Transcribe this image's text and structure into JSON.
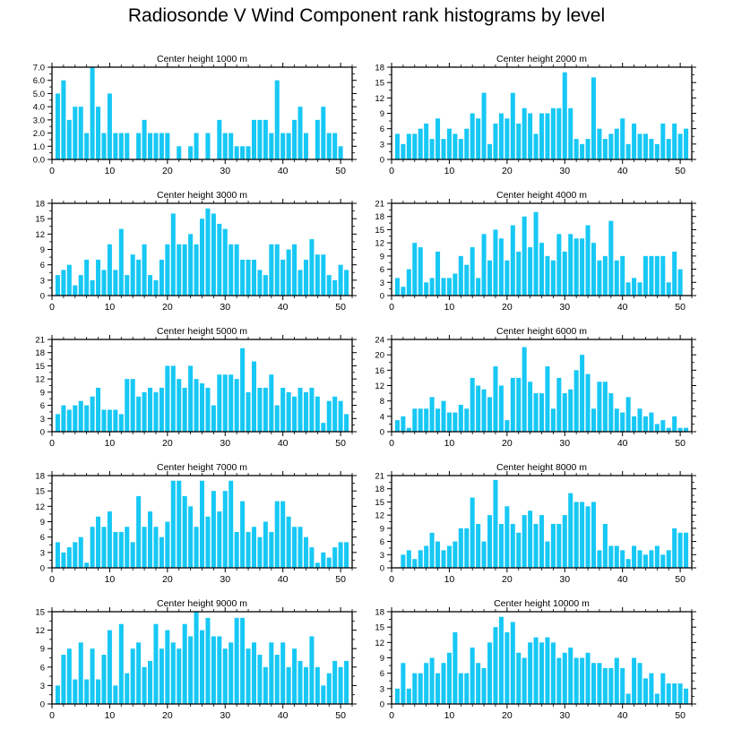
{
  "title": "Radiosonde V Wind Component rank histograms by level",
  "colors": {
    "bar": "#17c8f5",
    "axis": "#000000",
    "background": "#ffffff"
  },
  "chart_data": [
    {
      "type": "bar",
      "title": "Center height 1000 m",
      "ylim": [
        0,
        7
      ],
      "yticks": [
        0.0,
        1.0,
        2.0,
        3.0,
        4.0,
        5.0,
        6.0,
        7.0
      ],
      "ytick_decimals": 1,
      "xlim": [
        0,
        52
      ],
      "xticks": [
        0,
        10,
        20,
        30,
        40,
        50
      ],
      "x": [
        1,
        2,
        3,
        4,
        5,
        6,
        7,
        8,
        9,
        10,
        11,
        12,
        13,
        14,
        15,
        16,
        17,
        18,
        19,
        20,
        21,
        22,
        23,
        24,
        25,
        26,
        27,
        28,
        29,
        30,
        31,
        32,
        33,
        34,
        35,
        36,
        37,
        38,
        39,
        40,
        41,
        42,
        43,
        44,
        45,
        46,
        47,
        48,
        49,
        50,
        51
      ],
      "values": [
        5,
        6,
        3,
        4,
        4,
        2,
        7,
        4,
        2,
        5,
        2,
        2,
        2,
        0,
        2,
        3,
        2,
        2,
        2,
        2,
        0,
        1,
        0,
        1,
        2,
        0,
        2,
        0,
        3,
        2,
        2,
        1,
        1,
        1,
        3,
        3,
        3,
        2,
        6,
        2,
        2,
        3,
        4,
        2,
        0,
        3,
        4,
        2,
        2,
        1,
        0
      ]
    },
    {
      "type": "bar",
      "title": "Center height 2000 m",
      "ylim": [
        0,
        18
      ],
      "yticks": [
        0,
        3,
        6,
        9,
        12,
        15,
        18
      ],
      "ytick_decimals": 0,
      "xlim": [
        0,
        52
      ],
      "xticks": [
        0,
        10,
        20,
        30,
        40,
        50
      ],
      "x": [
        1,
        2,
        3,
        4,
        5,
        6,
        7,
        8,
        9,
        10,
        11,
        12,
        13,
        14,
        15,
        16,
        17,
        18,
        19,
        20,
        21,
        22,
        23,
        24,
        25,
        26,
        27,
        28,
        29,
        30,
        31,
        32,
        33,
        34,
        35,
        36,
        37,
        38,
        39,
        40,
        41,
        42,
        43,
        44,
        45,
        46,
        47,
        48,
        49,
        50,
        51
      ],
      "values": [
        5,
        3,
        5,
        5,
        6,
        7,
        4,
        8,
        4,
        6,
        5,
        4,
        6,
        9,
        8,
        13,
        3,
        7,
        9,
        8,
        13,
        7,
        10,
        9,
        5,
        9,
        9,
        10,
        10,
        17,
        10,
        4,
        3,
        4,
        16,
        6,
        4,
        5,
        6,
        8,
        3,
        7,
        5,
        5,
        4,
        3,
        7,
        4,
        7,
        5,
        6
      ]
    },
    {
      "type": "bar",
      "title": "Center height 3000 m",
      "ylim": [
        0,
        18
      ],
      "yticks": [
        0,
        3,
        6,
        9,
        12,
        15,
        18
      ],
      "ytick_decimals": 0,
      "xlim": [
        0,
        52
      ],
      "xticks": [
        0,
        10,
        20,
        30,
        40,
        50
      ],
      "x": [
        1,
        2,
        3,
        4,
        5,
        6,
        7,
        8,
        9,
        10,
        11,
        12,
        13,
        14,
        15,
        16,
        17,
        18,
        19,
        20,
        21,
        22,
        23,
        24,
        25,
        26,
        27,
        28,
        29,
        30,
        31,
        32,
        33,
        34,
        35,
        36,
        37,
        38,
        39,
        40,
        41,
        42,
        43,
        44,
        45,
        46,
        47,
        48,
        49,
        50,
        51
      ],
      "values": [
        4,
        5,
        6,
        2,
        4,
        7,
        3,
        7,
        5,
        10,
        5,
        13,
        4,
        8,
        7,
        10,
        4,
        3,
        7,
        10,
        16,
        10,
        10,
        12,
        10,
        15,
        17,
        16,
        14,
        13,
        10,
        10,
        7,
        7,
        7,
        5,
        4,
        10,
        10,
        7,
        9,
        10,
        5,
        7,
        11,
        8,
        8,
        4,
        3,
        6,
        5
      ]
    },
    {
      "type": "bar",
      "title": "Center height 4000 m",
      "ylim": [
        0,
        21
      ],
      "yticks": [
        0,
        3,
        6,
        9,
        12,
        15,
        18,
        21
      ],
      "ytick_decimals": 0,
      "xlim": [
        0,
        52
      ],
      "xticks": [
        0,
        10,
        20,
        30,
        40,
        50
      ],
      "x": [
        1,
        2,
        3,
        4,
        5,
        6,
        7,
        8,
        9,
        10,
        11,
        12,
        13,
        14,
        15,
        16,
        17,
        18,
        19,
        20,
        21,
        22,
        23,
        24,
        25,
        26,
        27,
        28,
        29,
        30,
        31,
        32,
        33,
        34,
        35,
        36,
        37,
        38,
        39,
        40,
        41,
        42,
        43,
        44,
        45,
        46,
        47,
        48,
        49,
        50,
        51
      ],
      "values": [
        4,
        2,
        6,
        12,
        11,
        3,
        4,
        10,
        4,
        4,
        5,
        9,
        7,
        11,
        4,
        14,
        8,
        15,
        13,
        8,
        16,
        10,
        18,
        11,
        19,
        12,
        9,
        8,
        14,
        10,
        14,
        13,
        13,
        16,
        12,
        8,
        9,
        17,
        8,
        9,
        3,
        4,
        3,
        9,
        9,
        9,
        9,
        3,
        10,
        6,
        0
      ]
    },
    {
      "type": "bar",
      "title": "Center height 5000 m",
      "ylim": [
        0,
        21
      ],
      "yticks": [
        0,
        3,
        6,
        9,
        12,
        15,
        18,
        21
      ],
      "ytick_decimals": 0,
      "xlim": [
        0,
        52
      ],
      "xticks": [
        0,
        10,
        20,
        30,
        40,
        50
      ],
      "x": [
        1,
        2,
        3,
        4,
        5,
        6,
        7,
        8,
        9,
        10,
        11,
        12,
        13,
        14,
        15,
        16,
        17,
        18,
        19,
        20,
        21,
        22,
        23,
        24,
        25,
        26,
        27,
        28,
        29,
        30,
        31,
        32,
        33,
        34,
        35,
        36,
        37,
        38,
        39,
        40,
        41,
        42,
        43,
        44,
        45,
        46,
        47,
        48,
        49,
        50,
        51
      ],
      "values": [
        4,
        6,
        5,
        6,
        7,
        6,
        8,
        10,
        5,
        5,
        5,
        4,
        12,
        12,
        8,
        9,
        10,
        9,
        10,
        15,
        15,
        12,
        10,
        15,
        12,
        11,
        10,
        6,
        13,
        13,
        13,
        12,
        19,
        9,
        16,
        10,
        10,
        13,
        6,
        10,
        9,
        8,
        10,
        9,
        10,
        8,
        2,
        7,
        8,
        7,
        4
      ]
    },
    {
      "type": "bar",
      "title": "Center height 6000 m",
      "ylim": [
        0,
        24
      ],
      "yticks": [
        0,
        4,
        8,
        12,
        16,
        20,
        24
      ],
      "ytick_decimals": 0,
      "xlim": [
        0,
        52
      ],
      "xticks": [
        0,
        10,
        20,
        30,
        40,
        50
      ],
      "x": [
        1,
        2,
        3,
        4,
        5,
        6,
        7,
        8,
        9,
        10,
        11,
        12,
        13,
        14,
        15,
        16,
        17,
        18,
        19,
        20,
        21,
        22,
        23,
        24,
        25,
        26,
        27,
        28,
        29,
        30,
        31,
        32,
        33,
        34,
        35,
        36,
        37,
        38,
        39,
        40,
        41,
        42,
        43,
        44,
        45,
        46,
        47,
        48,
        49,
        50,
        51
      ],
      "values": [
        3,
        4,
        1,
        6,
        6,
        6,
        9,
        6,
        8,
        5,
        5,
        7,
        6,
        14,
        12,
        11,
        9,
        17,
        12,
        3,
        14,
        14,
        22,
        13,
        10,
        10,
        17,
        6,
        14,
        10,
        11,
        16,
        20,
        15,
        6,
        13,
        13,
        10,
        6,
        5,
        9,
        4,
        6,
        4,
        5,
        2,
        3,
        1,
        4,
        1,
        1
      ]
    },
    {
      "type": "bar",
      "title": "Center height 7000 m",
      "ylim": [
        0,
        18
      ],
      "yticks": [
        0,
        3,
        6,
        9,
        12,
        15,
        18
      ],
      "ytick_decimals": 0,
      "xlim": [
        0,
        52
      ],
      "xticks": [
        0,
        10,
        20,
        30,
        40,
        50
      ],
      "x": [
        1,
        2,
        3,
        4,
        5,
        6,
        7,
        8,
        9,
        10,
        11,
        12,
        13,
        14,
        15,
        16,
        17,
        18,
        19,
        20,
        21,
        22,
        23,
        24,
        25,
        26,
        27,
        28,
        29,
        30,
        31,
        32,
        33,
        34,
        35,
        36,
        37,
        38,
        39,
        40,
        41,
        42,
        43,
        44,
        45,
        46,
        47,
        48,
        49,
        50,
        51
      ],
      "values": [
        5,
        3,
        4,
        5,
        6,
        1,
        8,
        10,
        8,
        11,
        7,
        7,
        8,
        5,
        14,
        8,
        11,
        8,
        6,
        9,
        17,
        17,
        14,
        12,
        8,
        17,
        10,
        15,
        11,
        15,
        17,
        7,
        13,
        7,
        8,
        6,
        9,
        7,
        13,
        13,
        10,
        8,
        8,
        6,
        4,
        1,
        3,
        2,
        4,
        5,
        5
      ]
    },
    {
      "type": "bar",
      "title": "Center height 8000 m",
      "ylim": [
        0,
        21
      ],
      "yticks": [
        0,
        3,
        6,
        9,
        12,
        15,
        18,
        21
      ],
      "ytick_decimals": 0,
      "xlim": [
        0,
        52
      ],
      "xticks": [
        0,
        10,
        20,
        30,
        40,
        50
      ],
      "x": [
        1,
        2,
        3,
        4,
        5,
        6,
        7,
        8,
        9,
        10,
        11,
        12,
        13,
        14,
        15,
        16,
        17,
        18,
        19,
        20,
        21,
        22,
        23,
        24,
        25,
        26,
        27,
        28,
        29,
        30,
        31,
        32,
        33,
        34,
        35,
        36,
        37,
        38,
        39,
        40,
        41,
        42,
        43,
        44,
        45,
        46,
        47,
        48,
        49,
        50,
        51
      ],
      "values": [
        0,
        3,
        4,
        2,
        4,
        5,
        8,
        6,
        4,
        5,
        6,
        9,
        9,
        16,
        10,
        6,
        12,
        20,
        10,
        14,
        10,
        8,
        12,
        13,
        10,
        12,
        6,
        10,
        10,
        12,
        17,
        15,
        15,
        14,
        15,
        4,
        10,
        5,
        5,
        4,
        2,
        5,
        4,
        3,
        4,
        5,
        3,
        4,
        9,
        8,
        8
      ]
    },
    {
      "type": "bar",
      "title": "Center height 9000 m",
      "ylim": [
        0,
        15
      ],
      "yticks": [
        0,
        3,
        6,
        9,
        12,
        15
      ],
      "ytick_decimals": 0,
      "xlim": [
        0,
        52
      ],
      "xticks": [
        0,
        10,
        20,
        30,
        40,
        50
      ],
      "x": [
        1,
        2,
        3,
        4,
        5,
        6,
        7,
        8,
        9,
        10,
        11,
        12,
        13,
        14,
        15,
        16,
        17,
        18,
        19,
        20,
        21,
        22,
        23,
        24,
        25,
        26,
        27,
        28,
        29,
        30,
        31,
        32,
        33,
        34,
        35,
        36,
        37,
        38,
        39,
        40,
        41,
        42,
        43,
        44,
        45,
        46,
        47,
        48,
        49,
        50,
        51
      ],
      "values": [
        3,
        8,
        9,
        4,
        10,
        4,
        9,
        4,
        8,
        12,
        3,
        13,
        5,
        9,
        10,
        6,
        7,
        13,
        9,
        12,
        10,
        9,
        13,
        11,
        15,
        12,
        14,
        11,
        11,
        9,
        10,
        14,
        14,
        9,
        10,
        8,
        6,
        10,
        8,
        10,
        6,
        9,
        7,
        6,
        11,
        6,
        3,
        5,
        7,
        6,
        7
      ]
    },
    {
      "type": "bar",
      "title": "Center height 10000 m",
      "ylim": [
        0,
        18
      ],
      "yticks": [
        0,
        3,
        6,
        9,
        12,
        15,
        18
      ],
      "ytick_decimals": 0,
      "xlim": [
        0,
        52
      ],
      "xticks": [
        0,
        10,
        20,
        30,
        40,
        50
      ],
      "x": [
        1,
        2,
        3,
        4,
        5,
        6,
        7,
        8,
        9,
        10,
        11,
        12,
        13,
        14,
        15,
        16,
        17,
        18,
        19,
        20,
        21,
        22,
        23,
        24,
        25,
        26,
        27,
        28,
        29,
        30,
        31,
        32,
        33,
        34,
        35,
        36,
        37,
        38,
        39,
        40,
        41,
        42,
        43,
        44,
        45,
        46,
        47,
        48,
        49,
        50,
        51
      ],
      "values": [
        3,
        8,
        3,
        6,
        6,
        8,
        9,
        6,
        8,
        10,
        14,
        6,
        6,
        11,
        8,
        7,
        12,
        15,
        17,
        14,
        16,
        10,
        9,
        12,
        13,
        12,
        13,
        12,
        9,
        10,
        11,
        9,
        9,
        10,
        8,
        8,
        7,
        7,
        9,
        7,
        2,
        9,
        8,
        5,
        6,
        2,
        6,
        4,
        4,
        4,
        3
      ]
    }
  ]
}
